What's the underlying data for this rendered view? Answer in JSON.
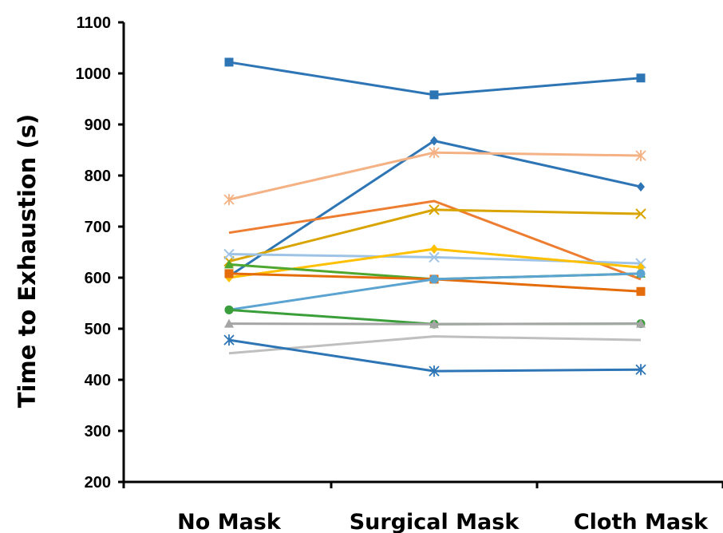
{
  "chart_data": {
    "type": "line",
    "title": "",
    "xlabel": "",
    "ylabel": "Time to Exhaustion (s)",
    "categories": [
      "No Mask",
      "Surgical Mask",
      "Cloth Mask"
    ],
    "ylim": [
      200,
      1100
    ],
    "yticks": [
      "200",
      "300",
      "400",
      "500",
      "600",
      "700",
      "800",
      "900",
      "1000",
      "1100"
    ],
    "grid": false,
    "legend": "none",
    "series": [
      {
        "color": "#2E75B6",
        "marker": "square",
        "values": [
          1022,
          958,
          991
        ]
      },
      {
        "color": "#2E75B6",
        "marker": "diamond",
        "values": [
          603,
          868,
          778
        ]
      },
      {
        "color": "#F4B183",
        "marker": "asterisk",
        "values": [
          753,
          845,
          839
        ]
      },
      {
        "color": "#ED7D31",
        "marker": "none",
        "values": [
          688,
          750,
          597
        ]
      },
      {
        "color": "#D9A400",
        "marker": "x",
        "values": [
          632,
          733,
          725
        ]
      },
      {
        "color": "#9DC3E6",
        "marker": "x",
        "values": [
          646,
          640,
          628
        ]
      },
      {
        "color": "#FFC000",
        "marker": "diamond",
        "values": [
          600,
          656,
          620
        ]
      },
      {
        "color": "#4EA72E",
        "marker": "triangle",
        "values": [
          626,
          597,
          608
        ]
      },
      {
        "color": "#E46C0A",
        "marker": "square",
        "values": [
          608,
          597,
          573
        ]
      },
      {
        "color": "#5BA3D0",
        "marker": "circle",
        "values": [
          537,
          597,
          608
        ]
      },
      {
        "color": "#3A9E3A",
        "marker": "circle",
        "values": [
          537,
          509,
          510
        ]
      },
      {
        "color": "#A5A5A5",
        "marker": "triangle",
        "values": [
          510,
          509,
          510
        ]
      },
      {
        "color": "#BFBFBF",
        "marker": "none",
        "values": [
          452,
          485,
          478
        ]
      },
      {
        "color": "#2E75B6",
        "marker": "asterisk",
        "values": [
          478,
          417,
          420
        ]
      }
    ]
  }
}
